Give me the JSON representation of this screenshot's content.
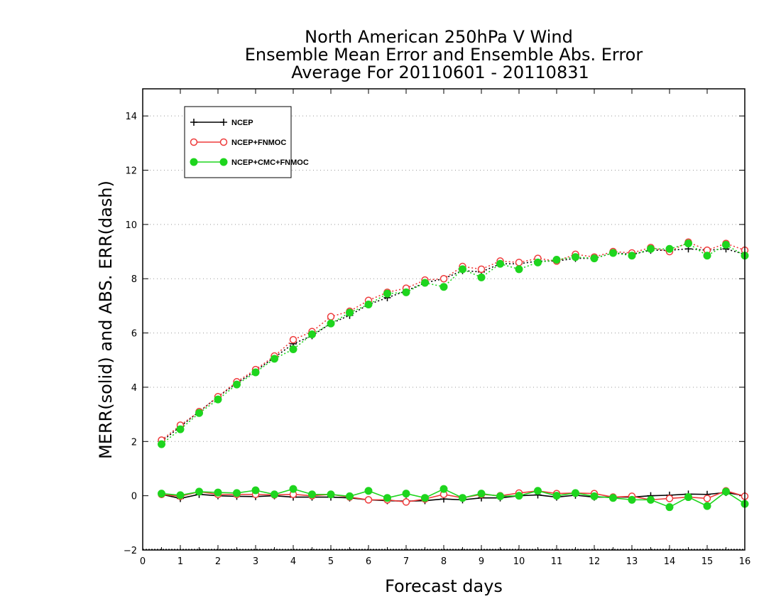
{
  "chart_data": {
    "type": "line",
    "title": [
      "North American 250hPa V Wind",
      "Ensemble Mean Error and Ensemble Abs. Error",
      "Average For 20110601 - 20110831"
    ],
    "xlabel": "Forecast days",
    "ylabel": "MERR(solid) and ABS. ERR(dash)",
    "xlim": [
      0,
      16
    ],
    "ylim": [
      -2,
      15
    ],
    "x_ticks": [
      0,
      1,
      2,
      3,
      4,
      5,
      6,
      7,
      8,
      9,
      10,
      11,
      12,
      13,
      14,
      15,
      16
    ],
    "y_ticks": [
      -2,
      0,
      2,
      4,
      6,
      8,
      10,
      12,
      14
    ],
    "y_gridlines": [
      2,
      4,
      6,
      8,
      10,
      12,
      14
    ],
    "legend_position": "top-left",
    "x": [
      0.5,
      1.0,
      1.5,
      2.0,
      2.5,
      3.0,
      3.5,
      4.0,
      4.5,
      5.0,
      5.5,
      6.0,
      6.5,
      7.0,
      7.5,
      8.0,
      8.5,
      9.0,
      9.5,
      10.0,
      10.5,
      11.0,
      11.5,
      12.0,
      12.5,
      13.0,
      13.5,
      14.0,
      14.5,
      15.0,
      15.5,
      16.0
    ],
    "series": [
      {
        "name": "NCEP",
        "color": "#000000",
        "marker": "plus",
        "solid": [
          0.05,
          -0.1,
          0.05,
          0.0,
          -0.02,
          -0.03,
          0.0,
          -0.05,
          -0.05,
          -0.05,
          -0.08,
          -0.15,
          -0.18,
          -0.2,
          -0.18,
          -0.12,
          -0.15,
          -0.08,
          -0.08,
          0.0,
          0.03,
          -0.05,
          0.02,
          -0.05,
          -0.05,
          -0.05,
          0.0,
          0.02,
          0.06,
          0.05,
          0.12,
          0.0
        ],
        "dashed": [
          2.0,
          2.55,
          3.1,
          3.65,
          4.15,
          4.6,
          5.1,
          5.6,
          5.9,
          6.35,
          6.65,
          7.05,
          7.3,
          7.55,
          7.85,
          8.0,
          8.3,
          8.25,
          8.55,
          8.55,
          8.65,
          8.65,
          8.75,
          8.75,
          8.95,
          8.9,
          9.05,
          9.05,
          9.1,
          9.05,
          9.1,
          8.9
        ]
      },
      {
        "name": "NCEP+FNMOC",
        "color": "#ee3b3b",
        "marker": "open-circle",
        "solid": [
          0.05,
          -0.02,
          0.15,
          0.05,
          0.05,
          0.05,
          0.03,
          0.05,
          0.0,
          0.05,
          -0.05,
          -0.15,
          -0.15,
          -0.23,
          -0.12,
          0.05,
          -0.08,
          0.05,
          0.0,
          0.1,
          0.18,
          0.08,
          0.1,
          0.08,
          -0.05,
          -0.02,
          -0.15,
          -0.1,
          -0.05,
          -0.1,
          0.18,
          -0.02
        ],
        "dashed": [
          2.05,
          2.6,
          3.1,
          3.65,
          4.2,
          4.65,
          5.15,
          5.75,
          6.05,
          6.6,
          6.8,
          7.2,
          7.5,
          7.65,
          7.95,
          8.0,
          8.45,
          8.35,
          8.65,
          8.6,
          8.75,
          8.65,
          8.9,
          8.8,
          9.0,
          8.95,
          9.15,
          9.0,
          9.35,
          9.05,
          9.3,
          9.05
        ]
      },
      {
        "name": "NCEP+CMC+FNMOC",
        "color": "#1ed51e",
        "marker": "filled-circle",
        "solid": [
          0.08,
          0.02,
          0.15,
          0.12,
          0.1,
          0.2,
          0.05,
          0.25,
          0.05,
          0.05,
          -0.02,
          0.18,
          -0.08,
          0.08,
          -0.08,
          0.25,
          -0.08,
          0.08,
          -0.02,
          0.0,
          0.18,
          0.0,
          0.1,
          -0.02,
          -0.08,
          -0.15,
          -0.15,
          -0.42,
          -0.05,
          -0.38,
          0.15,
          -0.3
        ],
        "dashed": [
          1.9,
          2.45,
          3.05,
          3.55,
          4.1,
          4.55,
          5.05,
          5.4,
          5.95,
          6.35,
          6.75,
          7.05,
          7.45,
          7.5,
          7.85,
          7.7,
          8.35,
          8.05,
          8.55,
          8.35,
          8.6,
          8.7,
          8.8,
          8.75,
          8.95,
          8.85,
          9.1,
          9.1,
          9.3,
          8.85,
          9.25,
          8.85
        ]
      }
    ]
  }
}
